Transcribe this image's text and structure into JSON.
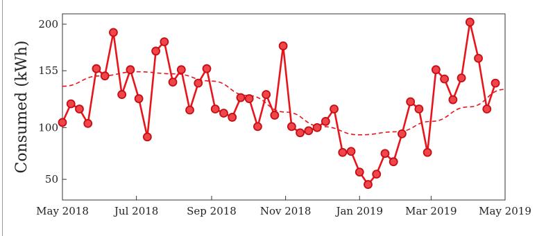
{
  "chart_data": {
    "type": "line",
    "title": "",
    "xlabel": "",
    "ylabel": "Consumed (kWh)",
    "xlim": [
      "2018-05-01",
      "2019-05-01"
    ],
    "ylim": [
      30,
      210
    ],
    "x_ticks": [
      {
        "date": "2018-05-01",
        "label": "May 2018"
      },
      {
        "date": "2018-07-01",
        "label": "Jul 2018"
      },
      {
        "date": "2018-09-01",
        "label": "Sep 2018"
      },
      {
        "date": "2018-11-01",
        "label": "Nov 2018"
      },
      {
        "date": "2019-01-01",
        "label": "Jan 2019"
      },
      {
        "date": "2019-03-01",
        "label": "Mar 2019"
      },
      {
        "date": "2019-05-01",
        "label": "May 2019"
      }
    ],
    "y_ticks": [
      50,
      100,
      155,
      200
    ],
    "y_tick_labels": [
      "50",
      "100",
      "155",
      "200"
    ],
    "grid": false,
    "legend": "none",
    "series": [
      {
        "style": "solid-line-with-circle-markers",
        "color": "#e8141b",
        "x": [
          "2018-05-01",
          "2018-05-08",
          "2018-05-15",
          "2018-05-22",
          "2018-05-29",
          "2018-06-05",
          "2018-06-12",
          "2018-06-19",
          "2018-06-26",
          "2018-07-03",
          "2018-07-10",
          "2018-07-17",
          "2018-07-24",
          "2018-07-31",
          "2018-08-07",
          "2018-08-14",
          "2018-08-21",
          "2018-08-28",
          "2018-09-04",
          "2018-09-11",
          "2018-09-18",
          "2018-09-25",
          "2018-10-02",
          "2018-10-09",
          "2018-10-16",
          "2018-10-23",
          "2018-10-30",
          "2018-11-06",
          "2018-11-13",
          "2018-11-20",
          "2018-11-27",
          "2018-12-04",
          "2018-12-11",
          "2018-12-18",
          "2018-12-25",
          "2019-01-01",
          "2019-01-08",
          "2019-01-15",
          "2019-01-22",
          "2019-01-29",
          "2019-02-05",
          "2019-02-12",
          "2019-02-19",
          "2019-02-26",
          "2019-03-05",
          "2019-03-12",
          "2019-03-19",
          "2019-03-26",
          "2019-04-02",
          "2019-04-09",
          "2019-04-16",
          "2019-04-23"
        ],
        "values": [
          105,
          123,
          118,
          104,
          157,
          150,
          192,
          132,
          156,
          128,
          91,
          174,
          183,
          144,
          156,
          117,
          143,
          157,
          118,
          114,
          110,
          129,
          128,
          101,
          132,
          112,
          179,
          101,
          95,
          97,
          100,
          106,
          118,
          76,
          77,
          57,
          45,
          55,
          75,
          67,
          94,
          125,
          118,
          76,
          156,
          147,
          127,
          148,
          202,
          167,
          118,
          143
        ]
      },
      {
        "style": "dashed-trend-line",
        "color": "#e8141b",
        "x": [
          "2018-05-01",
          "2018-06-01",
          "2018-07-01",
          "2018-08-01",
          "2018-09-01",
          "2018-10-01",
          "2018-11-01",
          "2018-12-01",
          "2019-01-01",
          "2019-02-01",
          "2019-03-01",
          "2019-04-01",
          "2019-05-01"
        ],
        "values": [
          140,
          150,
          154,
          152,
          145,
          131,
          115,
          101,
          93,
          96,
          106,
          120,
          137
        ]
      }
    ]
  }
}
